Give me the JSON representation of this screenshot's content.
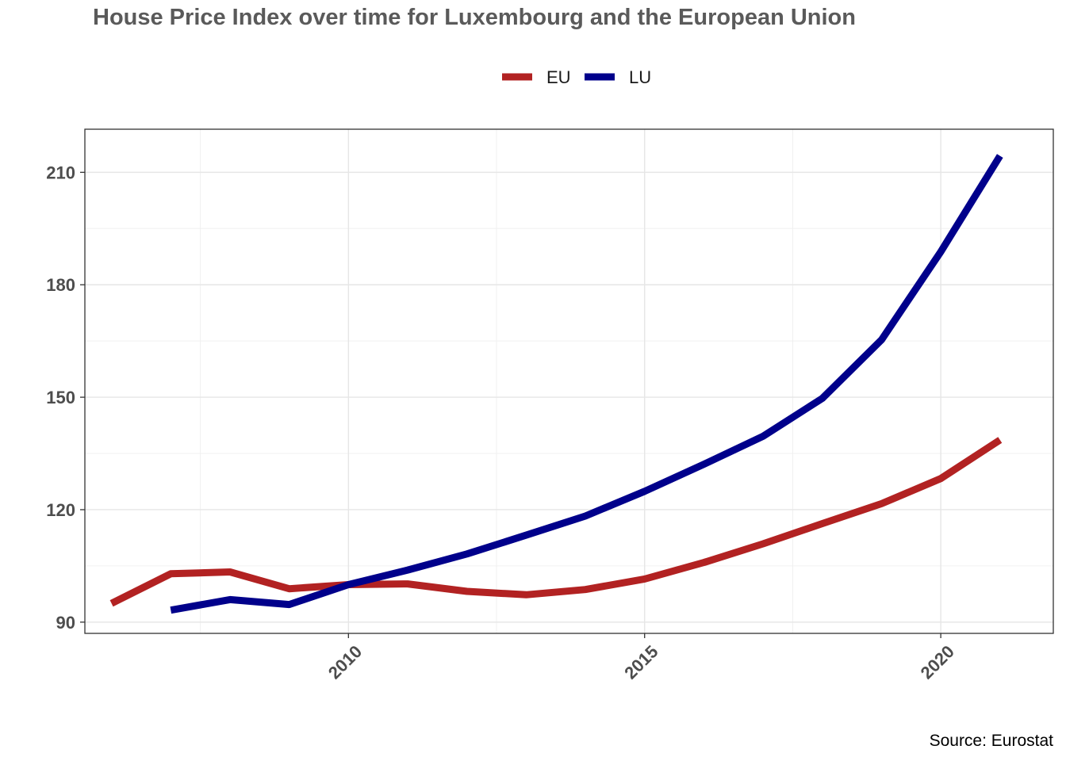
{
  "chart_data": {
    "type": "line",
    "title": "House Price Index over time for Luxembourg and the European Union",
    "caption": "Source: Eurostat",
    "xlabel": "",
    "ylabel": "",
    "xlim": [
      2005.55,
      2021.9
    ],
    "ylim": [
      87.0,
      221.5
    ],
    "x_ticks": [
      2010,
      2015,
      2020
    ],
    "x_tick_labels": [
      "2010",
      "2015",
      "2020"
    ],
    "y_ticks": [
      90,
      120,
      150,
      180,
      210
    ],
    "y_tick_labels": [
      "90",
      "120",
      "150",
      "180",
      "210"
    ],
    "grid": true,
    "legend_position": "top",
    "series": [
      {
        "name": "EU",
        "color": "#b22222",
        "x": [
          2006,
          2007,
          2008,
          2009,
          2010,
          2011,
          2012,
          2013,
          2014,
          2015,
          2016,
          2017,
          2018,
          2019,
          2020,
          2021
        ],
        "values": [
          95.0,
          102.9,
          103.4,
          98.9,
          100.0,
          100.2,
          98.2,
          97.3,
          98.7,
          101.5,
          105.9,
          110.9,
          116.3,
          121.6,
          128.3,
          138.6
        ]
      },
      {
        "name": "LU",
        "color": "#00008b",
        "x": [
          2007,
          2008,
          2009,
          2010,
          2011,
          2012,
          2013,
          2014,
          2015,
          2016,
          2017,
          2018,
          2019,
          2020,
          2021
        ],
        "values": [
          93.2,
          96.0,
          94.7,
          100.0,
          103.9,
          108.2,
          113.2,
          118.3,
          124.9,
          132.1,
          139.6,
          149.7,
          165.3,
          188.8,
          214.4
        ]
      }
    ]
  }
}
